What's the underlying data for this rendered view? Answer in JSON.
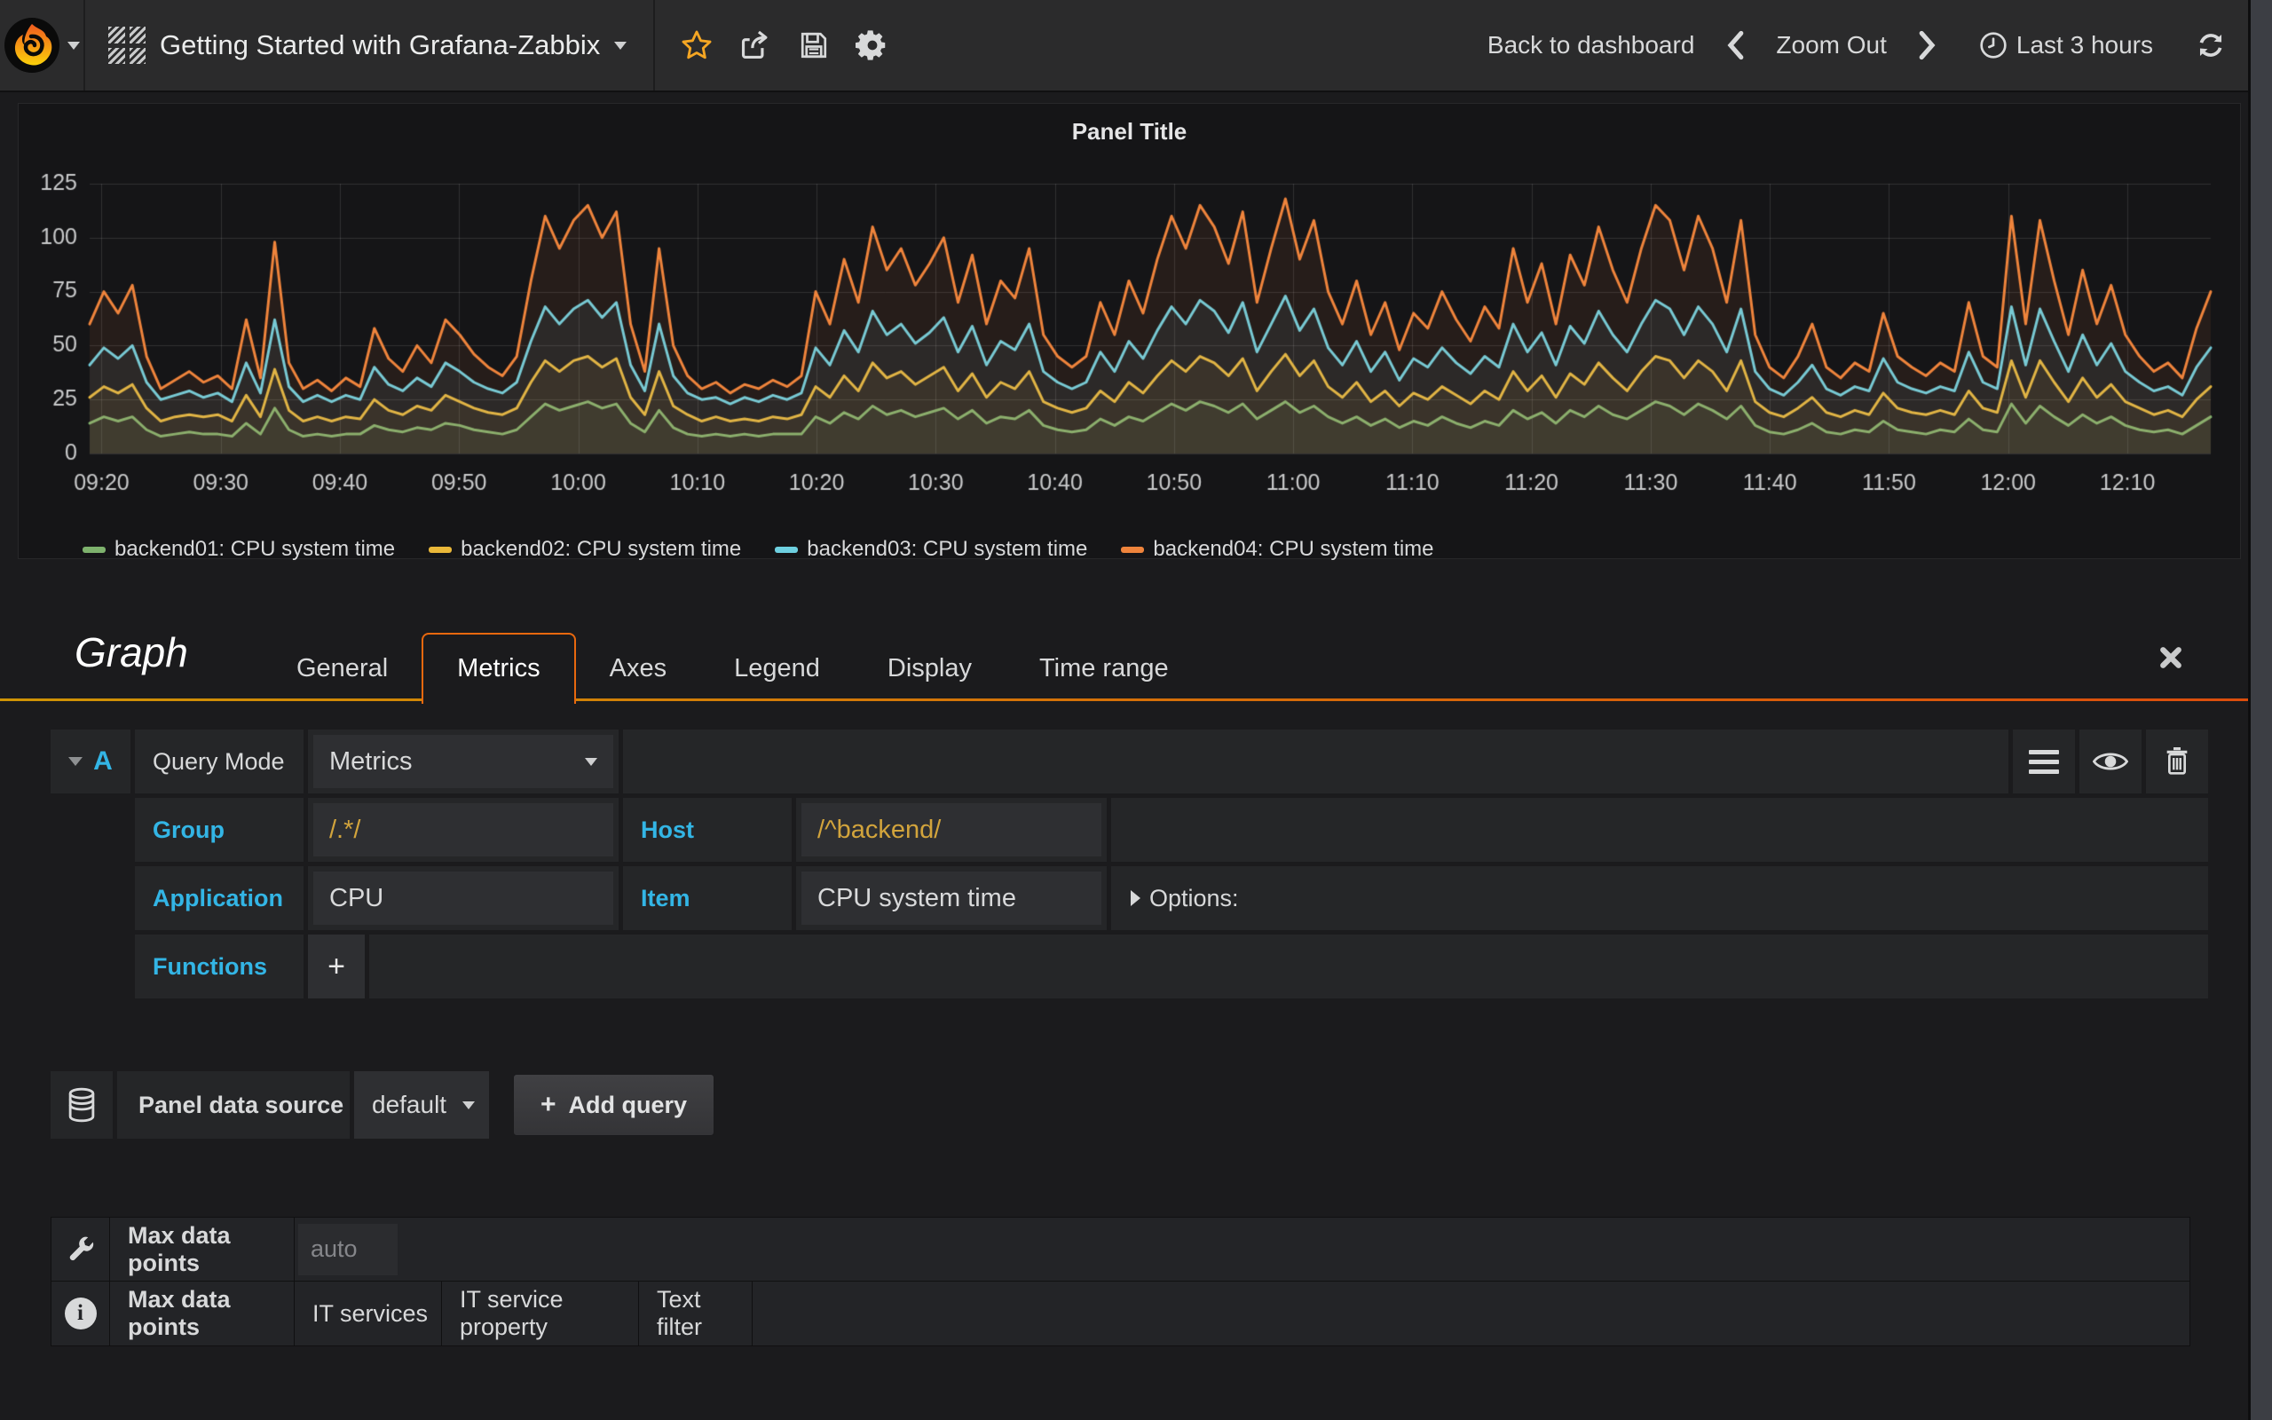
{
  "navbar": {
    "dashboard_title": "Getting Started with Grafana-Zabbix",
    "back_to_dashboard": "Back to dashboard",
    "zoom_out": "Zoom Out",
    "time_range": "Last 3 hours"
  },
  "colors": {
    "accent_blue": "#33b5e5",
    "value_gold": "#d2a43c",
    "star_active": "#f5a623",
    "tab_active_border": "#e8680e",
    "tab_underline_from": "#cf9405",
    "tab_underline_to": "#dc4e0c",
    "navbar_bg": "#2b2b2c",
    "panel_bg": "#151517",
    "cell_bg": "#252628",
    "input_bg": "#2e2f32"
  },
  "chart_data": {
    "type": "line",
    "title": "Panel Title",
    "xlabel": "",
    "ylabel": "",
    "grid": true,
    "legend_position": "bottom",
    "fill_opacity": 0.08,
    "line_width": 3,
    "y_axis": {
      "min": 0,
      "max": 125,
      "tick_step": 25,
      "ticks": [
        0,
        25,
        50,
        75,
        100,
        125
      ]
    },
    "x_axis": {
      "start": "09:19",
      "end": "12:17",
      "range_minutes": [
        0,
        178
      ],
      "ticks": [
        {
          "label": "09:20",
          "min": 1
        },
        {
          "label": "09:30",
          "min": 11
        },
        {
          "label": "09:40",
          "min": 21
        },
        {
          "label": "09:50",
          "min": 31
        },
        {
          "label": "10:00",
          "min": 41
        },
        {
          "label": "10:10",
          "min": 51
        },
        {
          "label": "10:20",
          "min": 61
        },
        {
          "label": "10:30",
          "min": 71
        },
        {
          "label": "10:40",
          "min": 81
        },
        {
          "label": "10:50",
          "min": 91
        },
        {
          "label": "11:00",
          "min": 101
        },
        {
          "label": "11:10",
          "min": 111
        },
        {
          "label": "11:20",
          "min": 121
        },
        {
          "label": "11:30",
          "min": 131
        },
        {
          "label": "11:40",
          "min": 141
        },
        {
          "label": "11:50",
          "min": 151
        },
        {
          "label": "12:00",
          "min": 161
        },
        {
          "label": "12:10",
          "min": 171
        }
      ]
    },
    "series": [
      {
        "name": "backend01: CPU system time",
        "color": "#7EB26D",
        "values": [
          14,
          17,
          15,
          17,
          11,
          8,
          9,
          10,
          9,
          9,
          8,
          14,
          9,
          21,
          11,
          8,
          9,
          8,
          9,
          9,
          13,
          11,
          10,
          12,
          11,
          14,
          13,
          11,
          10,
          9,
          11,
          17,
          23,
          20,
          22,
          24,
          21,
          23,
          14,
          10,
          20,
          12,
          9,
          8,
          9,
          8,
          9,
          8,
          9,
          9,
          9,
          17,
          14,
          19,
          16,
          22,
          18,
          20,
          17,
          19,
          21,
          16,
          20,
          14,
          17,
          16,
          20,
          13,
          11,
          10,
          11,
          16,
          13,
          17,
          15,
          19,
          23,
          20,
          24,
          22,
          19,
          23,
          16,
          20,
          24,
          19,
          22,
          17,
          14,
          17,
          13,
          16,
          12,
          15,
          13,
          17,
          14,
          12,
          15,
          13,
          20,
          16,
          19,
          14,
          20,
          17,
          22,
          18,
          16,
          20,
          24,
          22,
          18,
          23,
          20,
          16,
          22,
          13,
          10,
          9,
          11,
          14,
          10,
          9,
          11,
          10,
          15,
          11,
          10,
          9,
          11,
          10,
          16,
          11,
          10,
          23,
          14,
          22,
          17,
          13,
          18,
          14,
          17,
          13,
          11,
          10,
          11,
          9,
          13,
          17
        ]
      },
      {
        "name": "backend02: CPU system time",
        "color": "#EAB839",
        "values": [
          26,
          31,
          28,
          32,
          21,
          15,
          17,
          18,
          17,
          18,
          15,
          27,
          17,
          39,
          20,
          15,
          17,
          15,
          17,
          16,
          25,
          20,
          18,
          22,
          20,
          27,
          24,
          21,
          19,
          18,
          21,
          33,
          43,
          38,
          43,
          45,
          40,
          44,
          26,
          18,
          38,
          22,
          18,
          15,
          17,
          15,
          16,
          15,
          17,
          16,
          18,
          31,
          26,
          36,
          29,
          42,
          35,
          38,
          32,
          36,
          40,
          29,
          37,
          26,
          33,
          30,
          38,
          24,
          21,
          19,
          21,
          29,
          24,
          33,
          28,
          36,
          43,
          38,
          45,
          42,
          36,
          44,
          29,
          38,
          46,
          36,
          43,
          31,
          26,
          33,
          24,
          29,
          22,
          28,
          25,
          31,
          27,
          23,
          29,
          25,
          38,
          29,
          36,
          26,
          37,
          32,
          42,
          35,
          29,
          38,
          45,
          43,
          35,
          43,
          38,
          29,
          43,
          24,
          19,
          17,
          21,
          26,
          19,
          17,
          20,
          18,
          28,
          21,
          19,
          18,
          20,
          18,
          29,
          21,
          19,
          43,
          26,
          43,
          33,
          24,
          35,
          26,
          32,
          24,
          21,
          18,
          20,
          17,
          25,
          31
        ]
      },
      {
        "name": "backend03: CPU system time",
        "color": "#6ED0E0",
        "values": [
          41,
          49,
          44,
          50,
          33,
          25,
          27,
          29,
          26,
          28,
          24,
          42,
          28,
          62,
          31,
          24,
          27,
          24,
          27,
          25,
          40,
          32,
          29,
          35,
          31,
          42,
          38,
          33,
          30,
          28,
          33,
          52,
          68,
          60,
          67,
          71,
          63,
          70,
          41,
          29,
          60,
          36,
          28,
          25,
          26,
          23,
          26,
          24,
          27,
          25,
          28,
          49,
          41,
          57,
          47,
          66,
          55,
          60,
          51,
          56,
          63,
          47,
          59,
          41,
          52,
          48,
          60,
          38,
          33,
          30,
          33,
          47,
          38,
          52,
          44,
          57,
          68,
          60,
          71,
          66,
          56,
          70,
          47,
          60,
          73,
          57,
          67,
          49,
          41,
          52,
          38,
          47,
          34,
          44,
          40,
          49,
          42,
          37,
          45,
          40,
          60,
          47,
          56,
          41,
          59,
          51,
          66,
          55,
          47,
          60,
          71,
          67,
          55,
          68,
          60,
          47,
          67,
          38,
          30,
          27,
          33,
          41,
          30,
          27,
          31,
          29,
          44,
          33,
          30,
          28,
          31,
          29,
          47,
          33,
          30,
          68,
          41,
          67,
          52,
          38,
          55,
          41,
          51,
          38,
          33,
          29,
          31,
          27,
          40,
          49
        ]
      },
      {
        "name": "backend04: CPU system time",
        "color": "#EF843C",
        "values": [
          60,
          75,
          65,
          78,
          45,
          30,
          34,
          38,
          33,
          36,
          30,
          62,
          35,
          98,
          42,
          30,
          34,
          29,
          35,
          31,
          58,
          44,
          38,
          50,
          42,
          62,
          55,
          46,
          40,
          36,
          45,
          80,
          110,
          95,
          108,
          115,
          100,
          112,
          60,
          38,
          95,
          50,
          36,
          30,
          33,
          28,
          32,
          30,
          34,
          31,
          36,
          75,
          60,
          90,
          70,
          105,
          85,
          95,
          78,
          88,
          100,
          70,
          92,
          60,
          80,
          72,
          95,
          55,
          45,
          40,
          45,
          70,
          55,
          80,
          65,
          90,
          110,
          95,
          115,
          105,
          88,
          112,
          70,
          95,
          118,
          90,
          108,
          75,
          60,
          80,
          55,
          70,
          48,
          65,
          58,
          75,
          62,
          52,
          68,
          58,
          95,
          70,
          88,
          60,
          92,
          78,
          105,
          85,
          70,
          95,
          115,
          108,
          85,
          110,
          95,
          70,
          108,
          55,
          40,
          35,
          45,
          60,
          40,
          35,
          42,
          38,
          65,
          45,
          40,
          36,
          42,
          38,
          70,
          45,
          40,
          110,
          60,
          108,
          80,
          55,
          85,
          60,
          78,
          55,
          45,
          38,
          42,
          35,
          58,
          75
        ]
      }
    ]
  },
  "editor": {
    "panel_type": "Graph",
    "tabs": [
      "General",
      "Metrics",
      "Axes",
      "Legend",
      "Display",
      "Time range"
    ],
    "active_tab": "Metrics",
    "query": {
      "ref": "A",
      "mode_label": "Query Mode",
      "mode_value": "Metrics",
      "group_label": "Group",
      "group_value": "/.*/",
      "host_label": "Host",
      "host_value": "/^backend/",
      "application_label": "Application",
      "application_value": "CPU",
      "item_label": "Item",
      "item_value": "CPU system time",
      "options_label": "Options:",
      "functions_label": "Functions",
      "add_function_label": "+"
    },
    "datasource": {
      "label": "Panel data source",
      "value": "default",
      "add_query_label": "Add query"
    },
    "settings": {
      "max_data_points_label": "Max data points",
      "max_data_points_placeholder": "auto",
      "help_tabs": [
        "Max data points",
        "IT services",
        "IT service property",
        "Text filter"
      ]
    }
  }
}
